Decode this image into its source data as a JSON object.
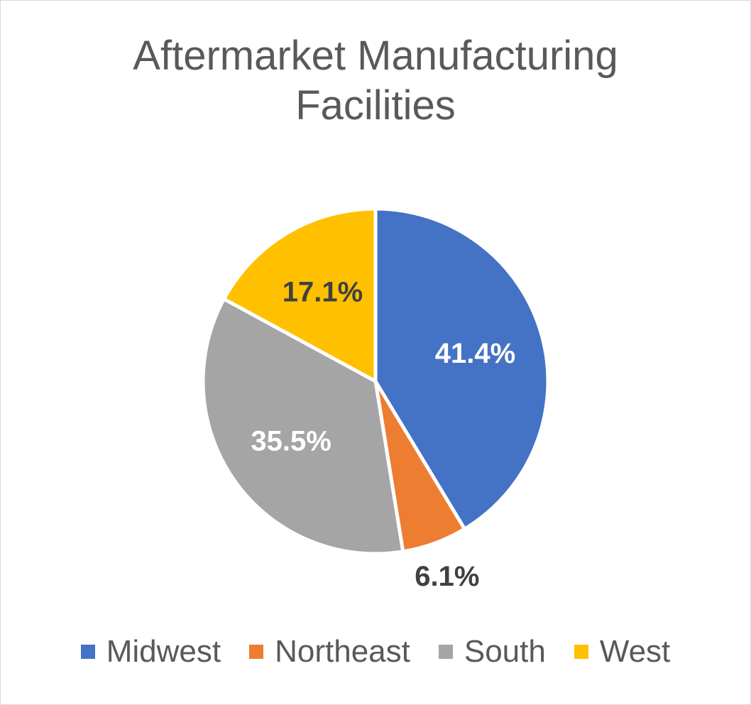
{
  "chart_data": {
    "type": "pie",
    "title": "Aftermarket Manufacturing Facilities",
    "title_lines": [
      "Aftermarket Manufacturing",
      "Facilities"
    ],
    "slices": [
      {
        "name": "Midwest",
        "value": 41.4,
        "label": "41.4%",
        "color": "#4472c4",
        "label_color": "#ffffff"
      },
      {
        "name": "Northeast",
        "value": 6.1,
        "label": "6.1%",
        "color": "#ed7d31",
        "label_color": "#404040"
      },
      {
        "name": "South",
        "value": 35.5,
        "label": "35.5%",
        "color": "#a5a5a5",
        "label_color": "#ffffff"
      },
      {
        "name": "West",
        "value": 17.1,
        "label": "17.1%",
        "color": "#ffc000",
        "label_color": "#404040"
      }
    ],
    "legend_position": "bottom",
    "data_labels": "percent"
  }
}
